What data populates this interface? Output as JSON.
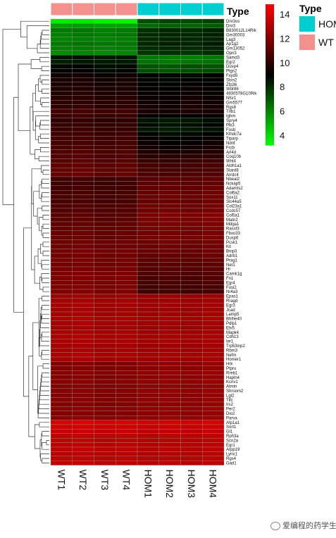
{
  "chart_data": {
    "type": "heatmap",
    "title": "",
    "columns": [
      "WT1",
      "WT2",
      "WT3",
      "WT4",
      "HOM1",
      "HOM2",
      "HOM3",
      "HOM4"
    ],
    "column_groups": [
      "WT",
      "WT",
      "WT",
      "WT",
      "HOM",
      "HOM",
      "HOM",
      "HOM"
    ],
    "rows": [
      "Dnr3os",
      "Dnr3",
      "B830012L14Rik",
      "Gm30003",
      "Lag3",
      "Ap1g2",
      "Gm13052",
      "Opn3",
      "Samd3",
      "Egr2",
      "Dusp4",
      "Ptgs2",
      "Fxyd5",
      "Stxn2",
      "Zfp36",
      "Wdr86",
      "4930578G10Rik",
      "Nfsr1",
      "Gm5577",
      "Rgs8",
      "Trib1",
      "Ighm",
      "Spry4",
      "Plk3",
      "Fosb",
      "Klhdc7a",
      "Tiparp",
      "Ndnf",
      "Frzb",
      "Arl4d",
      "Coq10b",
      "Wnt4",
      "Aldh1a1",
      "Stard8",
      "Arrdc4",
      "Nbeal2",
      "Nckap5",
      "Adamts2",
      "Col6a2",
      "Sox11",
      "Slc44a5",
      "Col23a1",
      "Ccdc57",
      "Col5a1",
      "Matn2",
      "Mdga1",
      "Rassf3",
      "Fbxo33",
      "Dusp6",
      "Pcsk1",
      "Kit",
      "Bnip3",
      "Adrb1",
      "Prag1",
      "Net1",
      "Hr",
      "Camk1g",
      "Fn1",
      "Egr4",
      "Fosl2",
      "Nr4a3",
      "Epas1",
      "Rragd",
      "Egr3",
      "Jcad",
      "Lamp5",
      "Bhlhe40",
      "Pdlp1",
      "Etv5",
      "Mapk4",
      "Cdh13",
      "Ier1",
      "Trp53inp2",
      "Rbm3",
      "Nefm",
      "Homer1",
      "Hrk",
      "Ptpru",
      "Rreb1",
      "Hapln4",
      "Kcnv1",
      "Atmin",
      "Shroom2",
      "Lgi2",
      "Tlfc",
      "Irs2",
      "Per2",
      "Dio2",
      "Parva",
      "Atp1a1",
      "Sort1",
      "Gl1",
      "Rph3a",
      "Scn2a",
      "Egr1",
      "Arpp19",
      "Lynx1",
      "Rgs4",
      "Gad1"
    ],
    "values": [
      [
        3.6,
        3.7,
        3.5,
        3.4,
        7.2,
        7.4,
        7.3,
        7.5
      ],
      [
        5.4,
        5.5,
        5.3,
        5.3,
        6.6,
        6.8,
        6.7,
        6.9
      ],
      [
        6.2,
        6.3,
        6.1,
        6.2,
        7.9,
        8.1,
        8.0,
        8.2
      ],
      [
        6.1,
        6.3,
        6.2,
        6.3,
        8.0,
        8.2,
        8.1,
        8.3
      ],
      [
        6.0,
        6.1,
        6.0,
        6.1,
        8.0,
        8.2,
        8.1,
        8.2
      ],
      [
        6.2,
        6.4,
        6.3,
        6.3,
        8.1,
        8.3,
        8.2,
        8.4
      ],
      [
        6.1,
        6.2,
        6.1,
        6.2,
        8.0,
        8.1,
        8.0,
        8.2
      ],
      [
        5.8,
        5.9,
        5.8,
        5.9,
        7.8,
        7.9,
        7.8,
        8.0
      ],
      [
        8.5,
        8.6,
        8.4,
        8.5,
        6.2,
        6.1,
        6.0,
        6.2
      ],
      [
        8.3,
        8.5,
        8.4,
        8.4,
        6.4,
        6.2,
        6.3,
        6.4
      ],
      [
        8.8,
        8.9,
        8.7,
        8.8,
        7.1,
        7.0,
        7.2,
        7.1
      ],
      [
        8.9,
        9.0,
        8.8,
        8.9,
        7.2,
        7.1,
        7.2,
        7.3
      ],
      [
        9.4,
        9.5,
        9.3,
        9.4,
        8.9,
        8.8,
        8.7,
        8.9
      ],
      [
        9.5,
        9.6,
        9.4,
        9.5,
        8.9,
        8.8,
        9.0,
        8.9
      ],
      [
        9.6,
        9.7,
        9.5,
        9.6,
        9.0,
        8.9,
        9.1,
        9.0
      ],
      [
        9.7,
        9.8,
        9.6,
        9.7,
        9.1,
        9.0,
        9.2,
        9.1
      ],
      [
        9.8,
        9.9,
        9.7,
        9.8,
        9.2,
        9.1,
        9.3,
        9.2
      ],
      [
        9.9,
        10.0,
        9.8,
        9.9,
        9.3,
        9.2,
        9.4,
        9.3
      ],
      [
        10.0,
        10.1,
        9.9,
        10.0,
        9.4,
        9.3,
        9.5,
        9.4
      ],
      [
        10.1,
        10.2,
        10.0,
        10.1,
        9.5,
        9.4,
        9.6,
        9.5
      ],
      [
        10.6,
        10.7,
        10.5,
        10.6,
        9.6,
        9.5,
        9.7,
        9.6
      ],
      [
        10.3,
        10.4,
        10.2,
        10.3,
        9.2,
        9.0,
        9.1,
        9.2
      ],
      [
        10.1,
        10.2,
        10.0,
        10.1,
        8.6,
        8.4,
        8.5,
        8.7
      ],
      [
        10.2,
        10.3,
        10.1,
        10.2,
        8.8,
        8.6,
        8.7,
        8.9
      ],
      [
        10.3,
        10.4,
        10.2,
        10.3,
        8.5,
        8.3,
        8.4,
        8.6
      ],
      [
        10.4,
        10.5,
        10.3,
        10.4,
        8.9,
        8.7,
        8.8,
        9.0
      ],
      [
        10.5,
        10.6,
        10.4,
        10.5,
        9.1,
        8.9,
        9.0,
        9.2
      ],
      [
        10.6,
        10.7,
        10.5,
        10.6,
        9.3,
        9.1,
        9.2,
        9.4
      ],
      [
        10.7,
        10.8,
        10.6,
        10.7,
        9.5,
        9.3,
        9.4,
        9.6
      ],
      [
        10.8,
        10.9,
        10.7,
        10.8,
        9.7,
        9.5,
        9.6,
        9.8
      ],
      [
        10.9,
        11.0,
        10.8,
        10.9,
        10.0,
        9.9,
        10.0,
        10.1
      ],
      [
        11.0,
        11.1,
        10.9,
        11.0,
        10.3,
        10.2,
        10.3,
        10.4
      ],
      [
        11.2,
        11.3,
        11.1,
        11.2,
        10.6,
        10.5,
        10.6,
        10.7
      ],
      [
        11.3,
        11.4,
        11.2,
        11.3,
        10.7,
        10.6,
        10.7,
        10.8
      ],
      [
        11.3,
        11.4,
        11.2,
        11.3,
        10.8,
        10.7,
        10.8,
        10.9
      ],
      [
        10.5,
        10.6,
        10.4,
        10.5,
        11.0,
        11.1,
        11.0,
        11.2
      ],
      [
        10.4,
        10.5,
        10.3,
        10.4,
        11.1,
        11.2,
        11.1,
        11.3
      ],
      [
        10.5,
        10.6,
        10.4,
        10.5,
        11.2,
        11.3,
        11.2,
        11.4
      ],
      [
        10.6,
        10.7,
        10.5,
        10.6,
        11.3,
        11.4,
        11.3,
        11.5
      ],
      [
        10.7,
        10.8,
        10.6,
        10.7,
        11.4,
        11.5,
        11.4,
        11.6
      ],
      [
        10.6,
        10.7,
        10.5,
        10.6,
        11.3,
        11.4,
        11.3,
        11.5
      ],
      [
        10.8,
        10.9,
        10.7,
        10.8,
        11.5,
        11.6,
        11.5,
        11.7
      ],
      [
        10.9,
        11.0,
        10.8,
        10.9,
        11.6,
        11.7,
        11.6,
        11.8
      ],
      [
        11.0,
        11.1,
        10.9,
        11.0,
        11.8,
        11.9,
        11.8,
        12.0
      ],
      [
        11.1,
        11.2,
        11.0,
        11.1,
        11.8,
        11.9,
        11.8,
        12.0
      ],
      [
        11.2,
        11.3,
        11.1,
        11.2,
        11.7,
        11.8,
        11.7,
        11.9
      ],
      [
        11.3,
        11.4,
        11.2,
        11.3,
        11.7,
        11.8,
        11.7,
        11.9
      ],
      [
        11.4,
        11.5,
        11.3,
        11.4,
        11.6,
        11.7,
        11.6,
        11.8
      ],
      [
        11.4,
        11.5,
        11.3,
        11.4,
        11.7,
        11.8,
        11.7,
        11.9
      ],
      [
        11.5,
        11.6,
        11.4,
        11.5,
        11.5,
        11.6,
        11.5,
        11.7
      ],
      [
        11.5,
        11.6,
        11.4,
        11.5,
        11.4,
        11.5,
        11.4,
        11.6
      ],
      [
        11.6,
        11.7,
        11.5,
        11.6,
        11.3,
        11.4,
        11.3,
        11.5
      ],
      [
        11.6,
        11.7,
        11.5,
        11.6,
        11.2,
        11.3,
        11.2,
        11.4
      ],
      [
        11.7,
        11.8,
        11.6,
        11.7,
        11.1,
        11.2,
        11.1,
        11.3
      ],
      [
        11.6,
        11.7,
        11.5,
        11.6,
        11.0,
        11.1,
        11.0,
        11.2
      ],
      [
        11.7,
        11.8,
        11.6,
        11.7,
        10.9,
        11.0,
        10.9,
        11.1
      ],
      [
        11.8,
        11.9,
        11.7,
        11.8,
        10.8,
        10.9,
        10.8,
        11.0
      ],
      [
        11.9,
        12.0,
        11.8,
        11.9,
        10.7,
        10.8,
        10.7,
        10.9
      ],
      [
        11.8,
        11.9,
        11.7,
        11.8,
        10.6,
        10.7,
        10.6,
        10.8
      ],
      [
        11.9,
        12.0,
        11.8,
        11.9,
        10.5,
        10.6,
        10.5,
        10.7
      ],
      [
        11.9,
        12.0,
        11.8,
        11.9,
        10.4,
        10.5,
        10.4,
        10.6
      ],
      [
        12.6,
        12.7,
        12.5,
        12.6,
        12.4,
        12.5,
        12.4,
        12.6
      ],
      [
        12.7,
        12.8,
        12.6,
        12.7,
        12.5,
        12.6,
        12.5,
        12.7
      ],
      [
        12.8,
        12.9,
        12.7,
        12.8,
        12.6,
        12.7,
        12.6,
        12.8
      ],
      [
        12.7,
        12.8,
        12.6,
        12.7,
        12.5,
        12.6,
        12.5,
        12.7
      ],
      [
        12.8,
        12.9,
        12.7,
        12.8,
        12.6,
        12.7,
        12.6,
        12.8
      ],
      [
        12.9,
        13.0,
        12.8,
        12.9,
        12.7,
        12.8,
        12.7,
        12.9
      ],
      [
        12.8,
        12.9,
        12.7,
        12.8,
        12.6,
        12.7,
        12.6,
        12.8
      ],
      [
        12.7,
        12.8,
        12.6,
        12.7,
        12.5,
        12.6,
        12.5,
        12.7
      ],
      [
        12.8,
        12.9,
        12.7,
        12.8,
        12.6,
        12.7,
        12.6,
        12.8
      ],
      [
        12.9,
        13.0,
        12.8,
        12.9,
        12.7,
        12.8,
        12.7,
        12.9
      ],
      [
        12.8,
        12.9,
        12.7,
        12.8,
        12.6,
        12.7,
        12.6,
        12.8
      ],
      [
        12.7,
        12.8,
        12.6,
        12.7,
        12.5,
        12.6,
        12.5,
        12.7
      ],
      [
        12.8,
        12.9,
        12.7,
        12.8,
        12.6,
        12.7,
        12.6,
        12.8
      ],
      [
        12.9,
        13.0,
        12.8,
        12.9,
        12.7,
        12.8,
        12.7,
        12.9
      ],
      [
        12.8,
        12.9,
        12.7,
        12.8,
        12.6,
        12.7,
        12.6,
        12.8
      ],
      [
        11.9,
        12.0,
        11.8,
        11.9,
        12.2,
        12.3,
        12.2,
        12.4
      ],
      [
        12.0,
        12.1,
        11.9,
        12.0,
        12.2,
        12.3,
        12.2,
        12.4
      ],
      [
        12.1,
        12.2,
        12.0,
        12.1,
        12.3,
        12.4,
        12.3,
        12.5
      ],
      [
        12.0,
        12.1,
        11.9,
        12.0,
        12.2,
        12.3,
        12.2,
        12.4
      ],
      [
        12.1,
        12.2,
        12.0,
        12.1,
        12.3,
        12.4,
        12.3,
        12.5
      ],
      [
        12.0,
        12.1,
        11.9,
        12.0,
        12.2,
        12.3,
        12.2,
        12.4
      ],
      [
        12.1,
        12.2,
        12.0,
        12.1,
        12.3,
        12.4,
        12.3,
        12.5
      ],
      [
        12.0,
        12.1,
        11.9,
        12.0,
        12.2,
        12.3,
        12.2,
        12.4
      ],
      [
        12.1,
        12.2,
        12.0,
        12.1,
        12.3,
        12.4,
        12.3,
        12.5
      ],
      [
        12.0,
        12.1,
        11.9,
        12.0,
        12.2,
        12.3,
        12.2,
        12.4
      ],
      [
        12.1,
        12.2,
        12.0,
        12.1,
        12.3,
        12.4,
        12.3,
        12.5
      ],
      [
        12.0,
        12.1,
        11.9,
        12.0,
        12.2,
        12.3,
        12.2,
        12.4
      ],
      [
        12.1,
        12.2,
        12.0,
        12.1,
        12.3,
        12.4,
        12.3,
        12.5
      ],
      [
        13.9,
        14.0,
        13.8,
        13.9,
        13.7,
        13.8,
        13.7,
        13.9
      ],
      [
        13.7,
        13.8,
        13.6,
        13.7,
        13.5,
        13.6,
        13.5,
        13.7
      ],
      [
        13.5,
        13.6,
        13.4,
        13.5,
        13.3,
        13.4,
        13.3,
        13.5
      ],
      [
        13.4,
        13.5,
        13.3,
        13.4,
        13.2,
        13.3,
        13.2,
        13.4
      ],
      [
        13.3,
        13.4,
        13.2,
        13.3,
        13.1,
        13.2,
        13.1,
        13.3
      ],
      [
        13.3,
        13.4,
        13.2,
        13.3,
        13.1,
        13.2,
        13.1,
        13.3
      ],
      [
        13.4,
        13.5,
        13.3,
        13.4,
        13.2,
        13.3,
        13.2,
        13.4
      ],
      [
        13.2,
        13.3,
        13.1,
        13.2,
        13.0,
        13.1,
        13.0,
        13.2
      ],
      [
        13.3,
        13.4,
        13.2,
        13.3,
        13.1,
        13.2,
        13.1,
        13.3
      ],
      [
        13.4,
        13.5,
        13.3,
        13.4,
        13.2,
        13.3,
        13.2,
        13.4
      ]
    ],
    "color_scale": {
      "min": 3.2,
      "max": 14.8,
      "stops": [
        {
          "value": 3.2,
          "color": "#00ff00"
        },
        {
          "value": 9.0,
          "color": "#000000"
        },
        {
          "value": 14.8,
          "color": "#ff0000"
        }
      ],
      "ticks": [
        4,
        6,
        8,
        10,
        12,
        14
      ]
    },
    "annotation": {
      "title": "Type",
      "legend": [
        {
          "label": "HOM",
          "color": "#00ced1"
        },
        {
          "label": "WT",
          "color": "#f4908e"
        }
      ]
    }
  },
  "watermark": {
    "text": "爱编程的药学生",
    "icon": "wechat-icon"
  }
}
